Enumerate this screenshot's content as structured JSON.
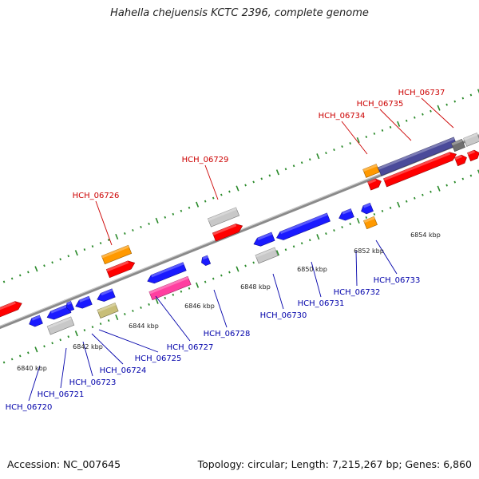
{
  "title": "Hahella chejuensis KCTC 2396, complete genome",
  "footer": {
    "accession": "Accession: NC_007645",
    "topology": "Topology: circular; Length: 7,215,267 bp; Genes: 6,860"
  },
  "colors": {
    "backbone": "#8a8a8a",
    "forward_label": "#cc0000",
    "reverse_label": "#0000aa",
    "tick": "#2a8a2a",
    "red": "#ff0000",
    "blue": "#1a1aff",
    "grey": "#c8c8c8",
    "orange": "#ff9900",
    "pink": "#ff3fa0",
    "olive": "#c8be78",
    "purple": "#4a4a9a"
  },
  "scale_labels": [
    "6840 kbp",
    "6842 kbp",
    "6844 kbp",
    "6846 kbp",
    "6848 kbp",
    "6850 kbp",
    "6852 kbp",
    "6854 kbp"
  ],
  "forward_gene_labels": [
    "HCH_06726",
    "HCH_06729",
    "HCH_06734",
    "HCH_06735",
    "HCH_06737"
  ],
  "reverse_gene_labels": [
    "HCH_06720",
    "HCH_06721",
    "HCH_06723",
    "HCH_06724",
    "HCH_06725",
    "HCH_06727",
    "HCH_06728",
    "HCH_06730",
    "HCH_06731",
    "HCH_06732",
    "HCH_06733"
  ]
}
